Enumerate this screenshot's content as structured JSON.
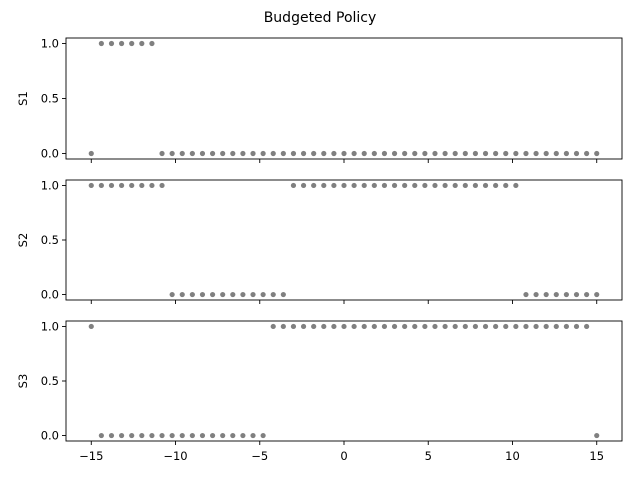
{
  "chart_data": {
    "type": "scatter",
    "title": "Budgeted Policy",
    "x": [
      -15.0,
      -14.4,
      -13.8,
      -13.2,
      -12.6,
      -12.0,
      -11.4,
      -10.8,
      -10.2,
      -9.6,
      -9.0,
      -8.4,
      -7.8,
      -7.2,
      -6.6,
      -6.0,
      -5.4,
      -4.8,
      -4.2,
      -3.6,
      -3.0,
      -2.4,
      -1.8,
      -1.2,
      -0.6,
      0.0,
      0.6,
      1.2,
      1.8,
      2.4,
      3.0,
      3.6,
      4.2,
      4.8,
      5.4,
      6.0,
      6.6,
      7.2,
      7.8,
      8.4,
      9.0,
      9.6,
      10.2,
      10.8,
      11.4,
      12.0,
      12.6,
      13.2,
      13.8,
      14.4,
      15.0
    ],
    "xticks": [
      -15,
      -10,
      -5,
      0,
      5,
      10,
      15
    ],
    "xlim": [
      -16.5,
      16.5
    ],
    "marker_color": "#808080",
    "subplots": [
      {
        "ylabel": "S1",
        "ylim": [
          -0.05,
          1.05
        ],
        "yticks": [
          "0.0",
          "0.5",
          "1.0"
        ],
        "values": [
          0,
          1,
          1,
          1,
          1,
          1,
          1,
          0,
          0,
          0,
          0,
          0,
          0,
          0,
          0,
          0,
          0,
          0,
          0,
          0,
          0,
          0,
          0,
          0,
          0,
          0,
          0,
          0,
          0,
          0,
          0,
          0,
          0,
          0,
          0,
          0,
          0,
          0,
          0,
          0,
          0,
          0,
          0,
          0,
          0,
          0,
          0,
          0,
          0,
          0,
          0
        ]
      },
      {
        "ylabel": "S2",
        "ylim": [
          -0.05,
          1.05
        ],
        "yticks": [
          "0.0",
          "0.5",
          "1.0"
        ],
        "values": [
          1,
          1,
          1,
          1,
          1,
          1,
          1,
          1,
          0,
          0,
          0,
          0,
          0,
          0,
          0,
          0,
          0,
          0,
          0,
          0,
          1,
          1,
          1,
          1,
          1,
          1,
          1,
          1,
          1,
          1,
          1,
          1,
          1,
          1,
          1,
          1,
          1,
          1,
          1,
          1,
          1,
          1,
          1,
          0,
          0,
          0,
          0,
          0,
          0,
          0,
          0
        ]
      },
      {
        "ylabel": "S3",
        "ylim": [
          -0.05,
          1.05
        ],
        "yticks": [
          "0.0",
          "0.5",
          "1.0"
        ],
        "values": [
          1,
          0,
          0,
          0,
          0,
          0,
          0,
          0,
          0,
          0,
          0,
          0,
          0,
          0,
          0,
          0,
          0,
          0,
          1,
          1,
          1,
          1,
          1,
          1,
          1,
          1,
          1,
          1,
          1,
          1,
          1,
          1,
          1,
          1,
          1,
          1,
          1,
          1,
          1,
          1,
          1,
          1,
          1,
          1,
          1,
          1,
          1,
          1,
          1,
          1,
          0
        ]
      }
    ]
  }
}
